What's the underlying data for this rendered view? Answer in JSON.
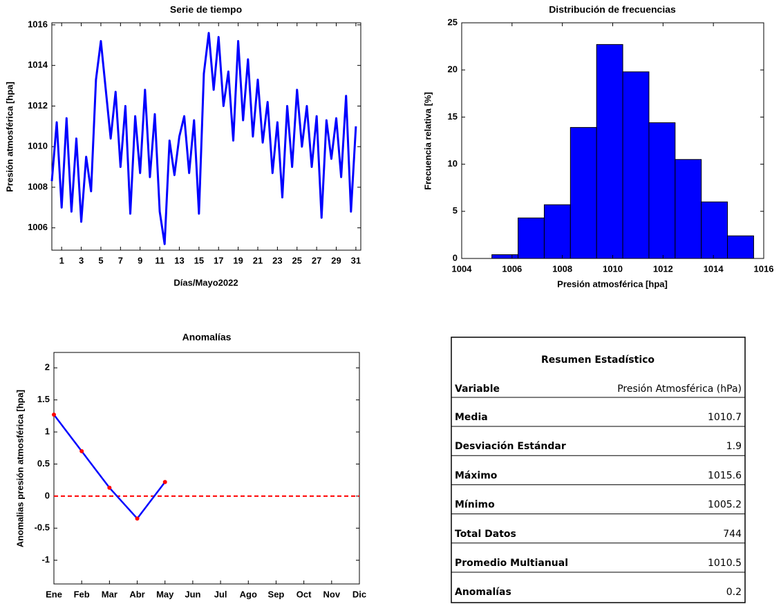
{
  "chart_data": [
    {
      "type": "line",
      "title": "Serie de tiempo",
      "xlabel": "Días/Mayo2022",
      "ylabel": "Presión atmosférica [hpa]",
      "x": [
        0,
        0.5,
        1,
        1.5,
        2,
        2.5,
        3,
        3.5,
        4,
        4.5,
        5,
        5.5,
        6,
        6.5,
        7,
        7.5,
        8,
        8.5,
        9,
        9.5,
        10,
        10.5,
        11,
        11.5,
        12,
        12.5,
        13,
        13.5,
        14,
        14.5,
        15,
        15.5,
        16,
        16.5,
        17,
        17.5,
        18,
        18.5,
        19,
        19.5,
        20,
        20.5,
        21,
        21.5,
        22,
        22.5,
        23,
        23.5,
        24,
        24.5,
        25,
        25.5,
        26,
        26.5,
        27,
        27.5,
        28,
        28.5,
        29,
        29.5,
        30,
        30.5,
        31
      ],
      "values": [
        1008.3,
        1011.2,
        1007.0,
        1011.4,
        1006.8,
        1010.4,
        1006.3,
        1009.5,
        1007.8,
        1013.3,
        1015.2,
        1012.8,
        1010.4,
        1012.7,
        1009.0,
        1012.0,
        1006.7,
        1011.5,
        1008.7,
        1012.8,
        1008.5,
        1011.6,
        1006.8,
        1005.2,
        1010.3,
        1008.6,
        1010.5,
        1011.5,
        1008.7,
        1011.3,
        1006.7,
        1013.6,
        1015.6,
        1012.8,
        1015.4,
        1012.0,
        1013.7,
        1010.3,
        1015.2,
        1011.3,
        1014.3,
        1010.5,
        1013.3,
        1010.2,
        1012.2,
        1008.7,
        1011.2,
        1007.5,
        1012.0,
        1009.0,
        1012.8,
        1010.0,
        1012.0,
        1009.0,
        1011.5,
        1006.5,
        1011.3,
        1009.4,
        1011.4,
        1008.5,
        1012.5,
        1006.8,
        1011.0
      ],
      "color": "#0000ff",
      "xlim": [
        0,
        31.5
      ],
      "xticks": [
        1,
        3,
        5,
        7,
        9,
        11,
        13,
        15,
        17,
        19,
        21,
        23,
        25,
        27,
        29,
        31
      ],
      "ylim": [
        1004.9,
        1016.1
      ],
      "yticks": [
        1006,
        1008,
        1010,
        1012,
        1014,
        1016
      ]
    },
    {
      "type": "histogram",
      "title": "Distribución de frecuencias",
      "xlabel": "Presión atmosférica [hpa]",
      "ylabel": "Frecuencia relativa [%]",
      "bins": [
        1005.2,
        1006.24,
        1007.28,
        1008.32,
        1009.36,
        1010.4,
        1011.44,
        1012.48,
        1013.52,
        1014.56,
        1015.6
      ],
      "values": [
        0.4,
        4.3,
        5.7,
        13.9,
        22.7,
        19.8,
        14.4,
        10.5,
        6.0,
        2.4
      ],
      "color": "#0000ff",
      "xlim": [
        1004,
        1016
      ],
      "xticks": [
        1004,
        1006,
        1008,
        1010,
        1012,
        1014,
        1016
      ],
      "ylim": [
        0,
        25
      ],
      "yticks": [
        0,
        5,
        10,
        15,
        20,
        25
      ]
    },
    {
      "type": "line",
      "title": "Anomalías",
      "ylabel": "Anomalias presión atmosférica [hpa]",
      "categories": [
        "Ene",
        "Feb",
        "Mar",
        "Abr",
        "May",
        "Jun",
        "Jul",
        "Ago",
        "Sep",
        "Oct",
        "Nov",
        "Dic"
      ],
      "values": [
        1.27,
        0.7,
        0.13,
        -0.35,
        0.22,
        null,
        null,
        null,
        null,
        null,
        null,
        null
      ],
      "color": "#0000ff",
      "marker_color": "#ff0000",
      "hline": 0,
      "hline_color": "#ff0000",
      "ylim": [
        -1.37,
        2.24
      ],
      "yticks": [
        -1,
        -0.5,
        0,
        0.5,
        1,
        1.5,
        2
      ]
    }
  ],
  "table": {
    "title": "Resumen Estadístico",
    "header": [
      "Variable",
      "Presión Atmosférica (hPa)"
    ],
    "rows": [
      [
        "Media",
        "1010.7"
      ],
      [
        "Desviación Estándar",
        "1.9"
      ],
      [
        "Máximo",
        "1015.6"
      ],
      [
        "Mínimo",
        "1005.2"
      ],
      [
        "Total Datos",
        "744"
      ],
      [
        "Promedio Multianual",
        "1010.5"
      ],
      [
        "Anomalías",
        "0.2"
      ]
    ]
  }
}
